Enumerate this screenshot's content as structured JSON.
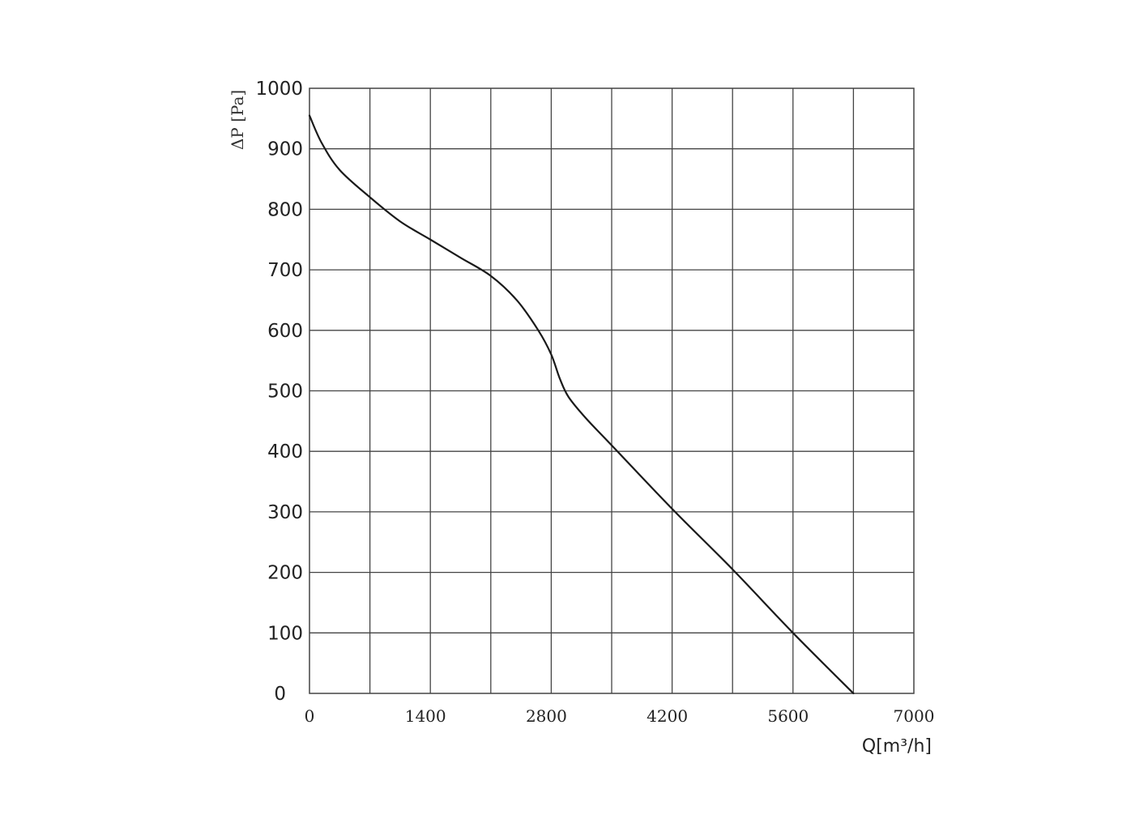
{
  "chart_data": {
    "type": "line",
    "title": "",
    "xlabel": "Q[m³/h]",
    "ylabel": "ΔP [Pa]",
    "xlim": [
      0,
      7000
    ],
    "ylim": [
      0,
      1000
    ],
    "xticks": [
      0,
      1400,
      2800,
      4200,
      5600,
      7000
    ],
    "yticks": [
      0,
      100,
      200,
      300,
      400,
      500,
      600,
      700,
      800,
      900,
      1000
    ],
    "grid": true,
    "grid_x_step": 700,
    "grid_y_step": 100,
    "line_color": "#1a1a1a",
    "series": [
      {
        "x": [
          0,
          140,
          350,
          700,
          1050,
          1400,
          1750,
          2100,
          2400,
          2650,
          2800,
          2900,
          3000,
          3200,
          3500,
          4200,
          4900,
          5600,
          6300
        ],
        "y": [
          955,
          910,
          865,
          820,
          780,
          750,
          720,
          690,
          650,
          600,
          560,
          520,
          490,
          455,
          410,
          305,
          205,
          100,
          0
        ]
      }
    ]
  }
}
